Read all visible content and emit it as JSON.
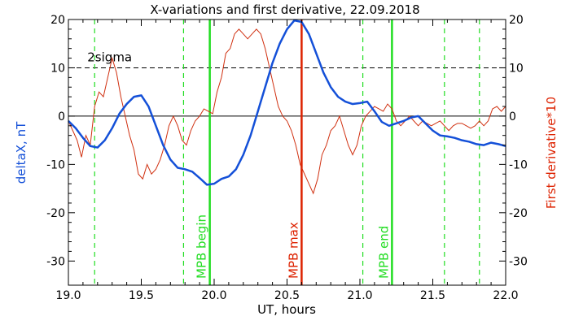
{
  "chart_data": {
    "type": "line",
    "title": "X-variations and first derivative, 22.09.2018",
    "xlabel": "UT, hours",
    "ylabel_left": "deltaX, nT",
    "ylabel_right": "First derivative*10",
    "xlim": [
      19.0,
      22.0
    ],
    "ylim": [
      -35,
      20
    ],
    "x_ticks": [
      19.0,
      19.5,
      20.0,
      20.5,
      21.0,
      21.5,
      22.0
    ],
    "x_tick_labels": [
      "19.0",
      "19.5",
      "20.0",
      "20.5",
      "21.0",
      "21.5",
      "22.0"
    ],
    "y_ticks": [
      20,
      10,
      0,
      -10,
      -20,
      -30
    ],
    "y_tick_labels_left": [
      "20",
      "10",
      "0",
      "-10",
      "-20",
      "-30"
    ],
    "y_tick_labels_right": [
      "20",
      "10",
      "0",
      "-10",
      "-20",
      "-30"
    ],
    "grid": false,
    "colors": {
      "deltaX": "#1450d8",
      "derivative": "#d03010",
      "green": "#22dd22",
      "red": "#dd2200",
      "axis": "#000000",
      "left_label": "#1450d8",
      "right_label": "#dd2200"
    },
    "reference_lines": [
      {
        "y": 10,
        "style": "dashed",
        "label": "2sigma",
        "label_x": 19.13
      },
      {
        "y": 0,
        "style": "solid",
        "label": ""
      }
    ],
    "vertical_lines": [
      {
        "x": 19.18,
        "style": "dashed",
        "color": "green",
        "label": ""
      },
      {
        "x": 19.79,
        "style": "dashed",
        "color": "green",
        "label": ""
      },
      {
        "x": 19.97,
        "style": "solid",
        "color": "green",
        "label": "MPB begin"
      },
      {
        "x": 20.6,
        "style": "solid",
        "color": "red",
        "label": "MPB max"
      },
      {
        "x": 21.02,
        "style": "dashed",
        "color": "green",
        "label": ""
      },
      {
        "x": 21.22,
        "style": "solid",
        "color": "green",
        "label": "MPB end"
      },
      {
        "x": 21.58,
        "style": "dashed",
        "color": "green",
        "label": ""
      },
      {
        "x": 21.82,
        "style": "dashed",
        "color": "green",
        "label": ""
      }
    ],
    "series": [
      {
        "x": [
          19.0,
          19.05,
          19.1,
          19.15,
          19.2,
          19.25,
          19.3,
          19.35,
          19.4,
          19.45,
          19.5,
          19.55,
          19.6,
          19.65,
          19.7,
          19.75,
          19.8,
          19.85,
          19.9,
          19.95,
          20.0,
          20.05,
          20.1,
          20.15,
          20.2,
          20.25,
          20.3,
          20.35,
          20.4,
          20.45,
          20.5,
          20.55,
          20.6,
          20.65,
          20.7,
          20.75,
          20.8,
          20.85,
          20.9,
          20.95,
          21.0,
          21.05,
          21.1,
          21.15,
          21.2,
          21.25,
          21.3,
          21.35,
          21.4,
          21.45,
          21.5,
          21.55,
          21.6,
          21.65,
          21.7,
          21.75,
          21.8,
          21.85,
          21.9,
          21.95,
          22.0
        ],
        "values": [
          -1,
          -2.5,
          -4.5,
          -6.2,
          -6.5,
          -5,
          -2.5,
          0.5,
          2.5,
          4,
          4.3,
          2,
          -2,
          -6,
          -9,
          -10.7,
          -11,
          -11.5,
          -12.8,
          -14.2,
          -14,
          -13,
          -12.5,
          -11,
          -8,
          -4,
          1,
          6,
          11,
          15,
          18,
          19.8,
          19.5,
          17,
          13,
          9,
          6,
          4,
          3,
          2.5,
          2.7,
          3,
          1,
          -1.2,
          -2,
          -1.5,
          -1,
          -0.3,
          0,
          -1.5,
          -3,
          -4,
          -4.2,
          -4.5,
          -5,
          -5.3,
          -5.8,
          -6,
          -5.5,
          -5.8,
          -6.2
        ]
      },
      {
        "x": [
          19.0,
          19.03,
          19.06,
          19.09,
          19.12,
          19.15,
          19.18,
          19.21,
          19.24,
          19.27,
          19.3,
          19.33,
          19.36,
          19.39,
          19.42,
          19.45,
          19.48,
          19.51,
          19.54,
          19.57,
          19.6,
          19.63,
          19.66,
          19.69,
          19.72,
          19.75,
          19.78,
          19.81,
          19.84,
          19.87,
          19.9,
          19.93,
          19.96,
          19.99,
          20.02,
          20.05,
          20.08,
          20.11,
          20.14,
          20.17,
          20.2,
          20.23,
          20.26,
          20.29,
          20.32,
          20.35,
          20.38,
          20.41,
          20.44,
          20.47,
          20.5,
          20.53,
          20.56,
          20.59,
          20.62,
          20.65,
          20.68,
          20.71,
          20.74,
          20.77,
          20.8,
          20.83,
          20.86,
          20.89,
          20.92,
          20.95,
          20.98,
          21.01,
          21.04,
          21.07,
          21.1,
          21.13,
          21.16,
          21.19,
          21.22,
          21.25,
          21.28,
          21.31,
          21.34,
          21.37,
          21.4,
          21.43,
          21.46,
          21.49,
          21.52,
          21.55,
          21.58,
          21.61,
          21.64,
          21.67,
          21.7,
          21.73,
          21.76,
          21.79,
          21.82,
          21.85,
          21.88,
          21.91,
          21.94,
          21.97,
          22.0
        ],
        "values": [
          -1,
          -3,
          -5,
          -8.5,
          -4,
          -6,
          2,
          5,
          4,
          8,
          12,
          9,
          4,
          0,
          -4,
          -7,
          -12,
          -13,
          -10,
          -12,
          -11,
          -9,
          -6,
          -2,
          0,
          -2,
          -5,
          -6,
          -3,
          -1,
          0,
          1.5,
          1,
          0.5,
          5,
          8,
          13,
          14,
          17,
          18,
          17,
          16,
          17,
          18,
          17,
          14,
          10,
          6,
          2,
          0,
          -1,
          -3,
          -6,
          -10,
          -12,
          -14,
          -16,
          -13,
          -8,
          -6,
          -3,
          -2,
          0,
          -3,
          -6,
          -8,
          -6,
          -2,
          0,
          1,
          2,
          1.5,
          1,
          2.5,
          1.5,
          -1,
          -2,
          -1,
          0,
          -1,
          -2,
          -1,
          -1.5,
          -2,
          -1.5,
          -1,
          -2,
          -3,
          -2,
          -1.5,
          -1.5,
          -2,
          -2.5,
          -2,
          -1,
          -2,
          -1,
          1.5,
          2,
          1,
          2
        ]
      }
    ]
  }
}
